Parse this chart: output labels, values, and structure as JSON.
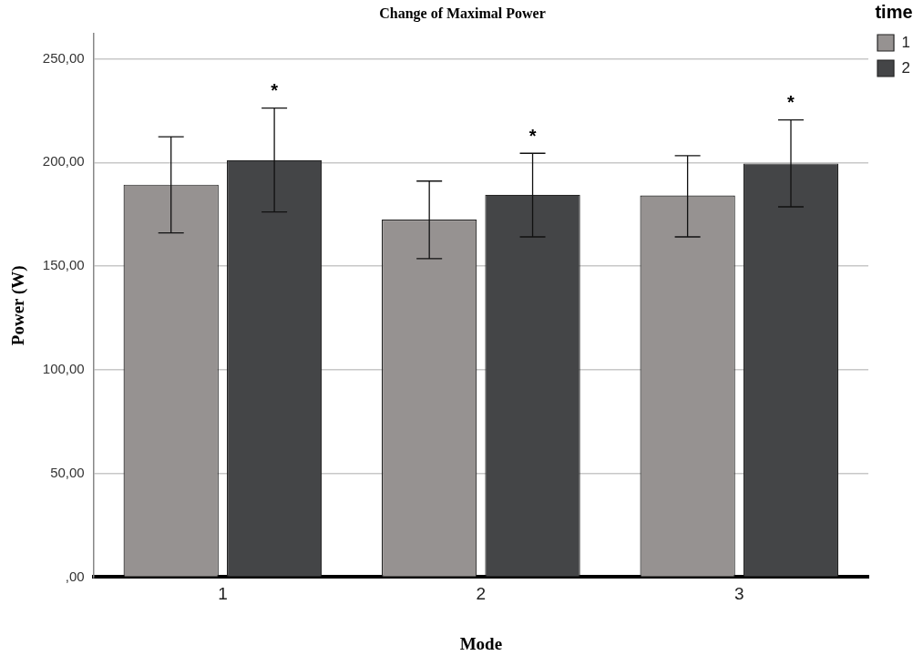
{
  "chart_data": {
    "type": "bar",
    "title": "Change of Maximal Power",
    "xlabel": "Mode",
    "ylabel": "Power (W)",
    "legend_title": "time",
    "categories": [
      "1",
      "2",
      "3"
    ],
    "series": [
      {
        "name": "1",
        "color": "#969291",
        "values": [
          189.3,
          172.4,
          184.1
        ],
        "errors": [
          [
            166.0,
            212.4
          ],
          [
            153.6,
            191.0
          ],
          [
            164.1,
            203.3
          ]
        ]
      },
      {
        "name": "2",
        "color": "#444547",
        "values": [
          201.1,
          184.4,
          199.5
        ],
        "errors": [
          [
            176.1,
            226.2
          ],
          [
            164.1,
            204.4
          ],
          [
            178.6,
            220.5
          ]
        ]
      }
    ],
    "ylim": [
      0,
      262
    ],
    "yticks": [
      {
        "value": 0,
        "label": ",00"
      },
      {
        "value": 50,
        "label": "50,00"
      },
      {
        "value": 100,
        "label": "100,00"
      },
      {
        "value": 150,
        "label": "150,00"
      },
      {
        "value": 200,
        "label": "200,00"
      },
      {
        "value": 250,
        "label": "250,00"
      }
    ],
    "grid": "y",
    "legend": "top right",
    "annotations": [
      "*",
      "*",
      "*"
    ]
  }
}
